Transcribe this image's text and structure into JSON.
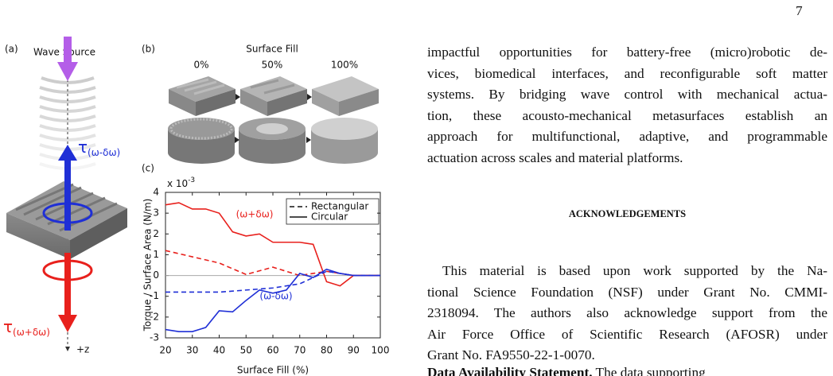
{
  "page_number": "7",
  "figure": {
    "panel_labels": [
      "(a)",
      "(b)",
      "(c)"
    ],
    "a": {
      "title": "Wave Source",
      "tau_upper": {
        "symbol": "τ",
        "subscript": "(ω-δω)"
      },
      "tau_lower": {
        "symbol": "τ",
        "subscript": "(ω+δω)"
      },
      "axis_label": "+z"
    },
    "b": {
      "title": "Surface Fill",
      "columns": [
        "0%",
        "50%",
        "100%"
      ]
    }
  },
  "chart_data": {
    "type": "line",
    "xlabel": "Surface Fill (%)",
    "ylabel": "Torque / Surface Area (N/m)",
    "y_multiplier": {
      "base": "x 10",
      "exponent": "-3"
    },
    "xlim": [
      20,
      100
    ],
    "xticks": [
      20,
      30,
      40,
      50,
      60,
      70,
      80,
      90,
      100
    ],
    "ylim": [
      -3,
      4
    ],
    "yticks": [
      -3,
      -2,
      -1,
      0,
      1,
      2,
      3,
      4
    ],
    "grid": false,
    "legend": [
      {
        "label": "Rectangular",
        "style": "dashed"
      },
      {
        "label": "Circular",
        "style": "solid"
      }
    ],
    "legend_position": "upper-right",
    "annotations": [
      {
        "text": "(ω+δω)",
        "color": "#e8201c"
      },
      {
        "text": "(ω-δω)",
        "color": "#1f2fd6"
      }
    ],
    "series": [
      {
        "style": "solid",
        "color": "#e8201c",
        "x": [
          20,
          25,
          30,
          35,
          40,
          45,
          50,
          55,
          60,
          65,
          70,
          75,
          80,
          85,
          90,
          95,
          100
        ],
        "values": [
          3.4,
          3.5,
          3.2,
          3.2,
          3.0,
          2.1,
          1.9,
          2.0,
          1.6,
          1.6,
          1.6,
          1.5,
          -0.3,
          -0.5,
          0.0,
          0.0,
          0.0
        ]
      },
      {
        "style": "dashed",
        "color": "#e8201c",
        "x": [
          20,
          30,
          40,
          50,
          60,
          70,
          80,
          90,
          100
        ],
        "values": [
          1.2,
          0.9,
          0.6,
          0.05,
          0.4,
          0.0,
          0.2,
          0.0,
          0.0
        ]
      },
      {
        "style": "solid",
        "color": "#1f2fd6",
        "x": [
          20,
          25,
          30,
          35,
          40,
          45,
          50,
          55,
          60,
          65,
          70,
          75,
          80,
          85,
          90,
          95,
          100
        ],
        "values": [
          -2.6,
          -2.7,
          -2.7,
          -2.5,
          -1.7,
          -1.75,
          -1.2,
          -0.7,
          -0.85,
          -0.7,
          0.1,
          -0.1,
          0.3,
          0.1,
          0.0,
          0.0,
          0.0
        ]
      },
      {
        "style": "dashed",
        "color": "#1f2fd6",
        "x": [
          20,
          30,
          40,
          50,
          60,
          70,
          80,
          90,
          100
        ],
        "values": [
          -0.8,
          -0.8,
          -0.8,
          -0.7,
          -0.6,
          -0.4,
          0.2,
          0.0,
          0.0
        ]
      }
    ]
  },
  "body": {
    "paragraph_1": [
      "impactful opportunities for battery-free (micro)robotic de-",
      "vices, biomedical interfaces, and reconfigurable soft matter",
      "systems. By bridging wave control with mechanical actua-",
      "tion, these acousto-mechanical metasurfaces establish an",
      "approach for multifunctional, adaptive, and programmable",
      "actuation across scales and material platforms."
    ],
    "heading": "ACKNOWLEDGEMENTS",
    "paragraph_2": [
      "This material is based upon work supported by the Na-",
      "tional Science Foundation (NSF) under Grant No. CMMI-",
      "2318094. The authors also acknowledge support from the",
      "Air Force Office of Scientific Research (AFOSR) under",
      "Grant No. FA9550-22-1-0070."
    ],
    "data_statement": {
      "label": "Data Availability Statement.",
      "text": "The data supporting"
    }
  }
}
